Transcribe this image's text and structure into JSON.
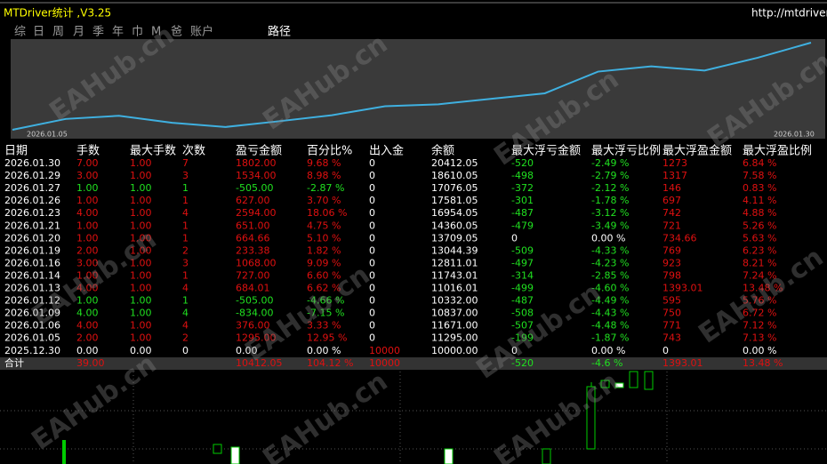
{
  "header": {
    "title": "MTDriver统计 ,V3.25",
    "url": "http://mtdriver.com"
  },
  "tabs": [
    "综",
    "日",
    "周",
    "月",
    "季",
    "年",
    "巾",
    "M",
    "爸",
    "账户"
  ],
  "path_label": "路径",
  "watermark": "EAHub.cn",
  "table": {
    "columns": [
      "日期",
      "手数",
      "最大手数",
      "次数",
      "盈亏金额",
      "百分比%",
      "出入金",
      "余额",
      "最大浮亏金额",
      "最大浮亏比例",
      "最大浮盈金额",
      "最大浮盈比例"
    ],
    "rows": [
      [
        "2026.01.30",
        "7.00",
        "1.00",
        "7",
        "1802.00",
        "9.68 %",
        "0",
        "20412.05",
        "-520",
        "-2.49 %",
        "1273",
        "6.84 %"
      ],
      [
        "2026.01.29",
        "3.00",
        "1.00",
        "3",
        "1534.00",
        "8.98 %",
        "0",
        "18610.05",
        "-498",
        "-2.79 %",
        "1317",
        "7.58 %"
      ],
      [
        "2026.01.27",
        "1.00",
        "1.00",
        "1",
        "-505.00",
        "-2.87 %",
        "0",
        "17076.05",
        "-372",
        "-2.12 %",
        "146",
        "0.83 %"
      ],
      [
        "2026.01.26",
        "1.00",
        "1.00",
        "1",
        "627.00",
        "3.70 %",
        "0",
        "17581.05",
        "-301",
        "-1.78 %",
        "697",
        "4.11 %"
      ],
      [
        "2026.01.23",
        "4.00",
        "1.00",
        "4",
        "2594.00",
        "18.06 %",
        "0",
        "16954.05",
        "-487",
        "-3.12 %",
        "742",
        "4.88 %"
      ],
      [
        "2026.01.21",
        "1.00",
        "1.00",
        "1",
        "651.00",
        "4.75 %",
        "0",
        "14360.05",
        "-479",
        "-3.49 %",
        "721",
        "5.26 %"
      ],
      [
        "2026.01.20",
        "1.00",
        "1.00",
        "1",
        "664.66",
        "5.10 %",
        "0",
        "13709.05",
        "0",
        "0.00 %",
        "734.66",
        "5.63 %"
      ],
      [
        "2026.01.19",
        "2.00",
        "1.00",
        "2",
        "233.38",
        "1.82 %",
        "0",
        "13044.39",
        "-509",
        "-4.33 %",
        "769",
        "6.23 %"
      ],
      [
        "2026.01.16",
        "3.00",
        "1.00",
        "3",
        "1068.00",
        "9.09 %",
        "0",
        "12811.01",
        "-497",
        "-4.23 %",
        "923",
        "8.21 %"
      ],
      [
        "2026.01.14",
        "1.00",
        "1.00",
        "1",
        "727.00",
        "6.60 %",
        "0",
        "11743.01",
        "-314",
        "-2.85 %",
        "798",
        "7.24 %"
      ],
      [
        "2026.01.13",
        "4.00",
        "1.00",
        "4",
        "684.01",
        "6.62 %",
        "0",
        "11016.01",
        "-499",
        "-4.60 %",
        "1393.01",
        "13.48 %"
      ],
      [
        "2026.01.12",
        "1.00",
        "1.00",
        "1",
        "-505.00",
        "-4.66 %",
        "0",
        "10332.00",
        "-487",
        "-4.49 %",
        "595",
        "5.76 %"
      ],
      [
        "2026.01.09",
        "4.00",
        "1.00",
        "4",
        "-834.00",
        "-7.15 %",
        "0",
        "10837.00",
        "-508",
        "-4.43 %",
        "750",
        "6.72 %"
      ],
      [
        "2026.01.06",
        "4.00",
        "1.00",
        "4",
        "376.00",
        "3.33 %",
        "0",
        "11671.00",
        "-507",
        "-4.48 %",
        "771",
        "7.12 %"
      ],
      [
        "2026.01.05",
        "2.00",
        "1.00",
        "2",
        "1295.00",
        "12.95 %",
        "0",
        "11295.00",
        "-199",
        "-1.87 %",
        "743",
        "7.13 %"
      ],
      [
        "2025.12.30",
        "0.00",
        "0.00",
        "0",
        "0.00",
        "0.00 %",
        "10000",
        "10000.00",
        "0",
        "0.00 %",
        "0",
        "0.00 %"
      ]
    ],
    "total": {
      "label": "合计",
      "lots": "39.00",
      "pnl": "10412.05",
      "pct": "104.12 %",
      "deposit": "10000",
      "float_loss": "-520",
      "float_loss_pct": "-4.6 %",
      "float_profit": "1393.01",
      "float_profit_pct": "13.48 %"
    }
  }
}
